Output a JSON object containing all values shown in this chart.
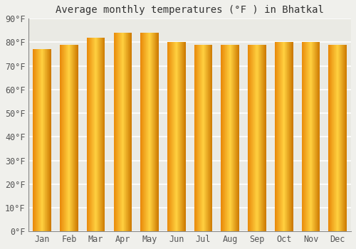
{
  "months": [
    "Jan",
    "Feb",
    "Mar",
    "Apr",
    "May",
    "Jun",
    "Jul",
    "Aug",
    "Sep",
    "Oct",
    "Nov",
    "Dec"
  ],
  "values": [
    77,
    79,
    82,
    84,
    84,
    80,
    79,
    79,
    79,
    80,
    80,
    79
  ],
  "title": "Average monthly temperatures (°F ) in Bhatkal",
  "ylim": [
    0,
    90
  ],
  "yticks": [
    0,
    10,
    20,
    30,
    40,
    50,
    60,
    70,
    80,
    90
  ],
  "ytick_labels": [
    "0°F",
    "10°F",
    "20°F",
    "30°F",
    "40°F",
    "50°F",
    "60°F",
    "70°F",
    "80°F",
    "90°F"
  ],
  "bar_color_left": "#E8890A",
  "bar_color_mid": "#FFCC44",
  "bar_color_right": "#E8890A",
  "bar_edge_color": "#B8700A",
  "background_color": "#F0F0EC",
  "plot_bg_color": "#EAEAE4",
  "grid_color": "#FFFFFF",
  "title_fontsize": 10,
  "tick_fontsize": 8.5,
  "bar_width": 0.68
}
